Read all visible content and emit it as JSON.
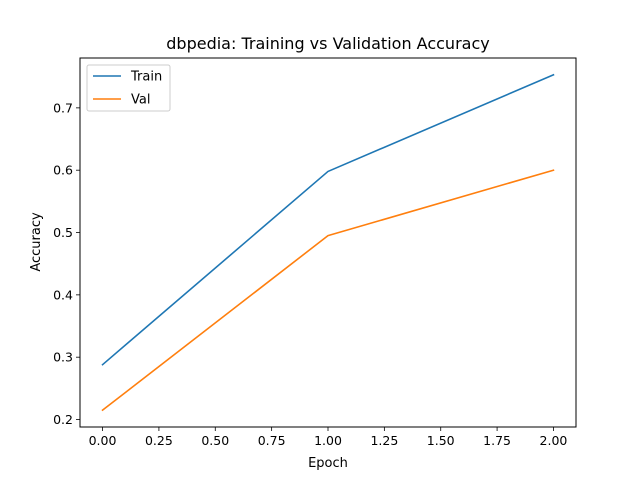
{
  "chart_data": {
    "type": "line",
    "title": "dbpedia: Training vs Validation Accuracy",
    "xlabel": "Epoch",
    "ylabel": "Accuracy",
    "x": [
      0,
      1,
      2
    ],
    "series": [
      {
        "name": "Train",
        "color": "#1f77b4",
        "values": [
          0.288,
          0.598,
          0.753
        ]
      },
      {
        "name": "Val",
        "color": "#ff7f0e",
        "values": [
          0.215,
          0.495,
          0.6
        ]
      }
    ],
    "xlim": [
      -0.1,
      2.1
    ],
    "ylim": [
      0.188,
      0.78
    ],
    "xticks": [
      "0.00",
      "0.25",
      "0.50",
      "0.75",
      "1.00",
      "1.25",
      "1.50",
      "1.75",
      "2.00"
    ],
    "yticks": [
      "0.2",
      "0.3",
      "0.4",
      "0.5",
      "0.6",
      "0.7"
    ],
    "grid": false,
    "legend_position": "top-left"
  }
}
